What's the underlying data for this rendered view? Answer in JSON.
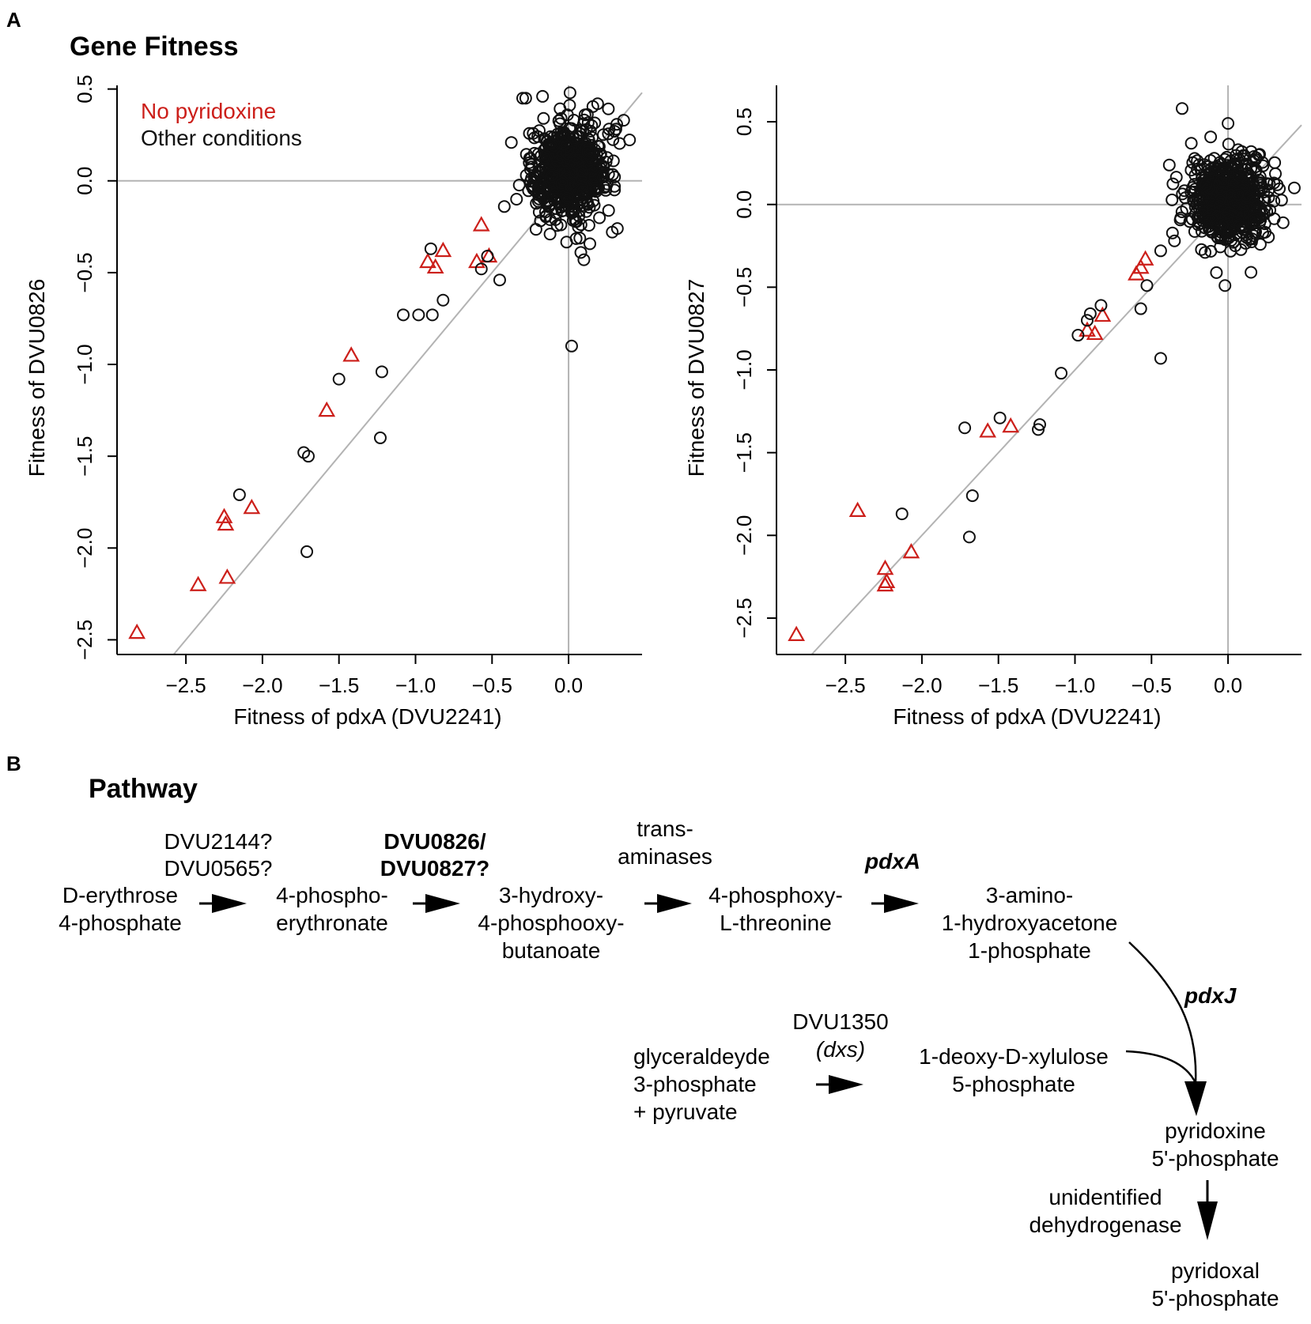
{
  "figure": {
    "panel_a_letter": "A",
    "panel_b_letter": "B",
    "gene_fitness_title": "Gene Fitness",
    "pathway_title": "Pathway"
  },
  "colors": {
    "no_pyridoxine": "#cc1f1a",
    "other_conditions": "#111111",
    "reference_line": "#b3b3b3"
  },
  "chart_data": [
    {
      "type": "scatter",
      "xlabel": "Fitness of pdxA (DVU2241)",
      "ylabel": "Fitness of DVU0826",
      "xlim": [
        -2.95,
        0.48
      ],
      "ylim": [
        -2.58,
        0.52
      ],
      "x_ticks": [
        -2.5,
        -2.0,
        -1.5,
        -1.0,
        -0.5,
        0.0
      ],
      "x_tick_labels": [
        "−2.5",
        "−2.0",
        "−1.5",
        "−1.0",
        "−0.5",
        "0.0"
      ],
      "y_ticks": [
        -2.5,
        -2.0,
        -1.5,
        -1.0,
        -0.5,
        0.0,
        0.5
      ],
      "y_tick_labels": [
        "−2.5",
        "−2.0",
        "−1.5",
        "−1.0",
        "−0.5",
        "0.0",
        "0.5"
      ],
      "reference_lines": [
        "x = 0",
        "y = 0",
        "y = x"
      ],
      "legend": [
        "No pyridoxine",
        "Other conditions"
      ],
      "legend_position": "top-left",
      "series": [
        {
          "name": "No pyridoxine",
          "marker": "triangle",
          "points": [
            [
              -2.82,
              -2.46
            ],
            [
              -2.42,
              -2.2
            ],
            [
              -2.23,
              -2.16
            ],
            [
              -2.24,
              -1.87
            ],
            [
              -2.25,
              -1.83
            ],
            [
              -2.07,
              -1.78
            ],
            [
              -1.58,
              -1.25
            ],
            [
              -1.42,
              -0.95
            ],
            [
              -0.92,
              -0.44
            ],
            [
              -0.87,
              -0.47
            ],
            [
              -0.82,
              -0.38
            ],
            [
              -0.6,
              -0.44
            ],
            [
              -0.57,
              -0.24
            ],
            [
              -0.52,
              -0.41
            ]
          ]
        },
        {
          "name": "Other conditions",
          "marker": "circle",
          "points": [
            [
              -2.15,
              -1.71
            ],
            [
              -1.73,
              -1.48
            ],
            [
              -1.7,
              -1.5
            ],
            [
              -1.71,
              -2.02
            ],
            [
              -1.5,
              -1.08
            ],
            [
              -1.23,
              -1.4
            ],
            [
              -1.22,
              -1.04
            ],
            [
              -1.08,
              -0.73
            ],
            [
              -0.98,
              -0.73
            ],
            [
              -0.9,
              -0.37
            ],
            [
              -0.89,
              -0.73
            ],
            [
              -0.82,
              -0.65
            ],
            [
              -0.57,
              -0.48
            ],
            [
              -0.53,
              -0.41
            ],
            [
              -0.45,
              -0.54
            ],
            [
              -0.42,
              -0.14
            ],
            [
              -0.34,
              -0.1
            ],
            [
              -0.3,
              0.45
            ],
            [
              -0.28,
              0.45
            ],
            [
              -0.17,
              0.46
            ],
            [
              0.02,
              -0.9
            ],
            [
              0.08,
              -0.39
            ],
            [
              0.1,
              -0.43
            ],
            [
              0.19,
              0.42
            ],
            [
              0.3,
              -0.05
            ],
            [
              0.3,
              0.27
            ],
            [
              0.36,
              0.33
            ],
            [
              0.3,
              -0.03
            ]
          ]
        }
      ],
      "dense_cluster": {
        "series": "Other conditions",
        "center": [
          0.0,
          0.05
        ],
        "sd": [
          0.13,
          0.13
        ],
        "count": 650
      }
    },
    {
      "type": "scatter",
      "xlabel": "Fitness of pdxA (DVU2241)",
      "ylabel": "Fitness of DVU0827",
      "xlim": [
        -2.95,
        0.48
      ],
      "ylim": [
        -2.72,
        0.72
      ],
      "x_ticks": [
        -2.5,
        -2.0,
        -1.5,
        -1.0,
        -0.5,
        0.0
      ],
      "x_tick_labels": [
        "−2.5",
        "−2.0",
        "−1.5",
        "−1.0",
        "−0.5",
        "0.0"
      ],
      "y_ticks": [
        -2.5,
        -2.0,
        -1.5,
        -1.0,
        -0.5,
        0.0,
        0.5
      ],
      "y_tick_labels": [
        "−2.5",
        "−2.0",
        "−1.5",
        "−1.0",
        "−0.5",
        "0.0",
        "0.5"
      ],
      "reference_lines": [
        "x = 0",
        "y = 0",
        "y = x"
      ],
      "legend": [],
      "series": [
        {
          "name": "No pyridoxine",
          "marker": "triangle",
          "points": [
            [
              -2.82,
              -2.6
            ],
            [
              -2.42,
              -1.85
            ],
            [
              -2.24,
              -2.2
            ],
            [
              -2.23,
              -2.28
            ],
            [
              -2.24,
              -2.3
            ],
            [
              -2.07,
              -2.1
            ],
            [
              -1.57,
              -1.37
            ],
            [
              -1.42,
              -1.34
            ],
            [
              -0.92,
              -0.76
            ],
            [
              -0.87,
              -0.78
            ],
            [
              -0.82,
              -0.67
            ],
            [
              -0.6,
              -0.42
            ],
            [
              -0.57,
              -0.38
            ],
            [
              -0.54,
              -0.33
            ]
          ]
        },
        {
          "name": "Other conditions",
          "marker": "circle",
          "points": [
            [
              -2.13,
              -1.87
            ],
            [
              -1.72,
              -1.35
            ],
            [
              -1.69,
              -2.01
            ],
            [
              -1.67,
              -1.76
            ],
            [
              -1.49,
              -1.29
            ],
            [
              -1.24,
              -1.36
            ],
            [
              -1.23,
              -1.33
            ],
            [
              -1.09,
              -1.02
            ],
            [
              -0.98,
              -0.79
            ],
            [
              -0.92,
              -0.7
            ],
            [
              -0.9,
              -0.66
            ],
            [
              -0.83,
              -0.61
            ],
            [
              -0.57,
              -0.63
            ],
            [
              -0.53,
              -0.49
            ],
            [
              -0.44,
              -0.93
            ],
            [
              -0.44,
              -0.28
            ],
            [
              -0.35,
              -0.22
            ],
            [
              -0.3,
              0.58
            ],
            [
              -0.24,
              0.37
            ],
            [
              -0.15,
              -0.29
            ],
            [
              -0.02,
              -0.49
            ],
            [
              0.0,
              0.49
            ],
            [
              0.09,
              0.32
            ],
            [
              0.15,
              -0.41
            ],
            [
              0.2,
              0.3
            ],
            [
              0.3,
              0.13
            ],
            [
              0.3,
              0.02
            ],
            [
              0.36,
              -0.11
            ]
          ]
        }
      ],
      "dense_cluster": {
        "series": "Other conditions",
        "center": [
          0.0,
          0.02
        ],
        "sd": [
          0.13,
          0.12
        ],
        "count": 650
      }
    }
  ],
  "pathway": {
    "compounds": {
      "erythrose": [
        "D-erythrose",
        "4-phosphate"
      ],
      "phosphoerythronate": [
        "4-phospho-",
        "erythronate"
      ],
      "hydroxy_butanoate": [
        "3-hydroxy-",
        "4-phosphooxy-",
        "butanoate"
      ],
      "phosphoxy_threonine": [
        "4-phosphoxy-",
        "L-threonine"
      ],
      "amino_hydroxyacetone": [
        "3-amino-",
        "1-hydroxyacetone",
        "1-phosphate"
      ],
      "glyceraldehyde": [
        "glyceraldeyde",
        "3-phosphate",
        "+ pyruvate"
      ],
      "deoxyxylulose": [
        "1-deoxy-D-xylulose",
        "5-phosphate"
      ],
      "pyridoxine": [
        "pyridoxine",
        "5'-phosphate"
      ],
      "pyridoxal": [
        "pyridoxal",
        "5'-phosphate"
      ]
    },
    "enzymes": {
      "step1": [
        "DVU2144?",
        "DVU0565?"
      ],
      "step2": [
        "DVU0826/",
        "DVU0827?"
      ],
      "step3": [
        "trans-",
        "aminases"
      ],
      "step4": "pdxA",
      "pdxj": "pdxJ",
      "dxs_gene": "DVU1350",
      "dxs_name": "(dxs)",
      "final": [
        "unidentified",
        "dehydrogenase"
      ]
    }
  }
}
